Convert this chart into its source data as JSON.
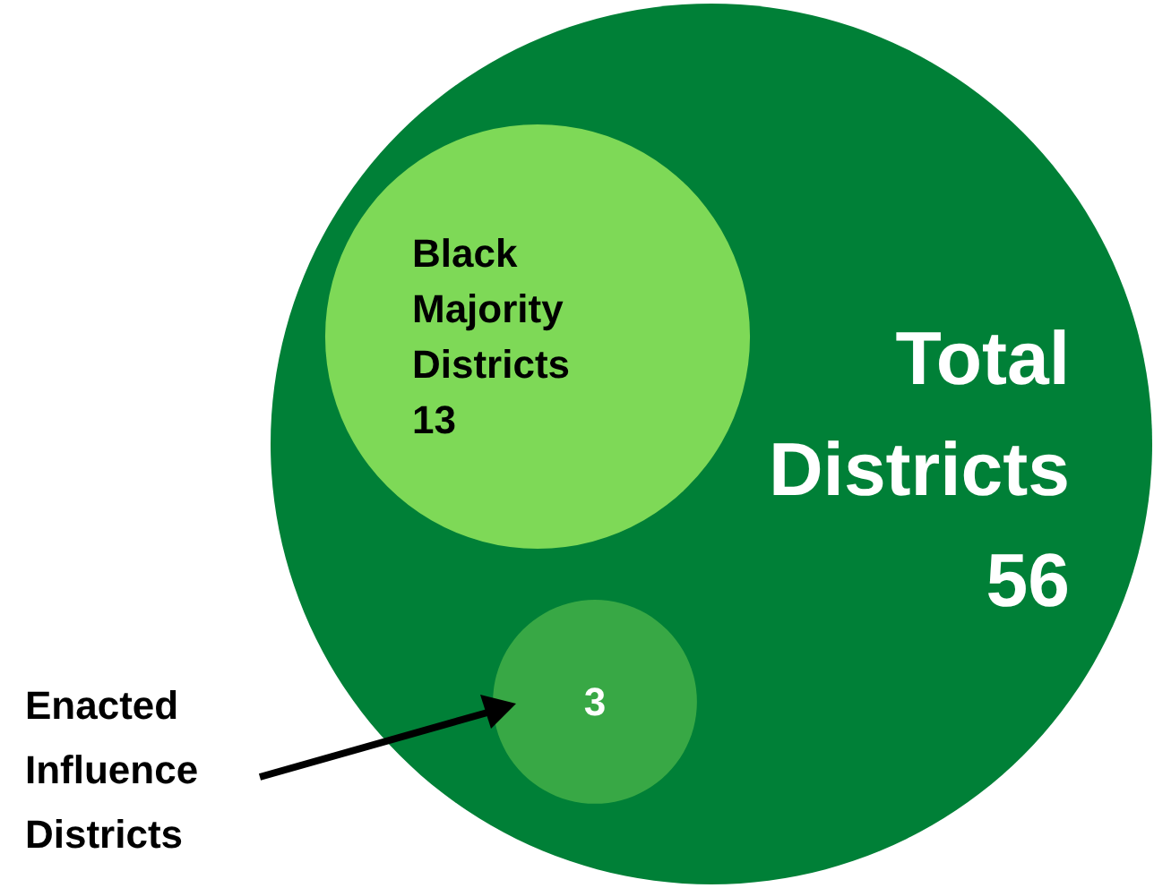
{
  "chart_data": {
    "type": "other",
    "categories": [
      "Total Districts",
      "Black Majority Districts",
      "Enacted Influence Districts"
    ],
    "values": [
      56,
      13,
      3
    ],
    "data_labels": true,
    "colors": [
      "#008037",
      "#7ed957",
      "#38a845"
    ]
  }
}
